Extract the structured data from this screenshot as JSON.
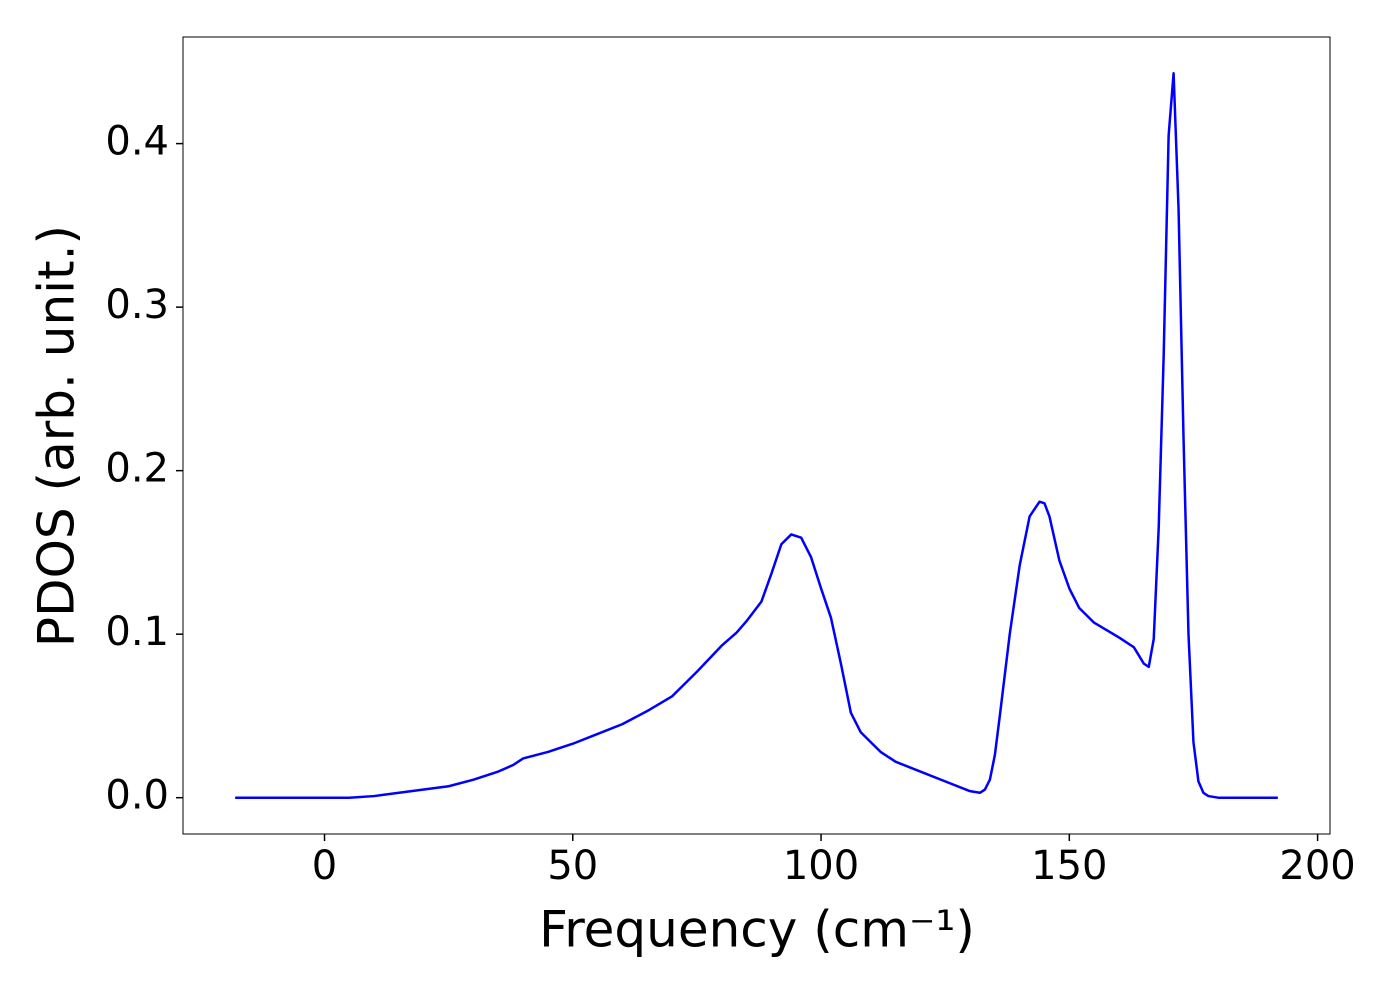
{
  "chart_data": {
    "type": "line",
    "x_label": "Frequency (cm⁻¹)",
    "y_label": "PDOS (arb. unit.)",
    "color": "#0000ff",
    "x": [
      -18,
      0,
      5,
      10,
      15,
      20,
      25,
      30,
      35,
      38,
      40,
      45,
      50,
      55,
      60,
      65,
      70,
      72,
      75,
      80,
      83,
      85,
      88,
      90,
      92,
      94,
      96,
      98,
      100,
      102,
      104,
      106,
      108,
      110,
      112,
      115,
      120,
      125,
      130,
      132,
      133,
      134,
      135,
      136,
      138,
      140,
      142,
      144,
      145,
      146,
      148,
      150,
      152,
      155,
      160,
      163,
      165,
      166,
      167,
      168,
      169,
      170,
      171,
      172,
      173,
      174,
      175,
      176,
      177,
      178,
      180,
      192
    ],
    "values": [
      0,
      0,
      0,
      0.001,
      0.003,
      0.005,
      0.007,
      0.011,
      0.016,
      0.02,
      0.024,
      0.028,
      0.033,
      0.039,
      0.045,
      0.053,
      0.062,
      0.068,
      0.077,
      0.093,
      0.101,
      0.108,
      0.12,
      0.137,
      0.155,
      0.161,
      0.159,
      0.147,
      0.128,
      0.11,
      0.082,
      0.052,
      0.04,
      0.034,
      0.028,
      0.022,
      0.016,
      0.01,
      0.004,
      0.003,
      0.005,
      0.011,
      0.026,
      0.05,
      0.1,
      0.142,
      0.172,
      0.181,
      0.18,
      0.172,
      0.145,
      0.128,
      0.116,
      0.107,
      0.098,
      0.092,
      0.082,
      0.08,
      0.097,
      0.165,
      0.27,
      0.405,
      0.443,
      0.36,
      0.22,
      0.1,
      0.034,
      0.01,
      0.003,
      0.001,
      0,
      0
    ],
    "xlim": [
      -28.5,
      202.5
    ],
    "ylim": [
      -0.0222,
      0.4652
    ],
    "xticks": [
      0,
      50,
      100,
      150,
      200
    ],
    "yticks": [
      {
        "value": 0,
        "label": "0.0"
      },
      0.1,
      0.2,
      0.3,
      0.4
    ]
  }
}
